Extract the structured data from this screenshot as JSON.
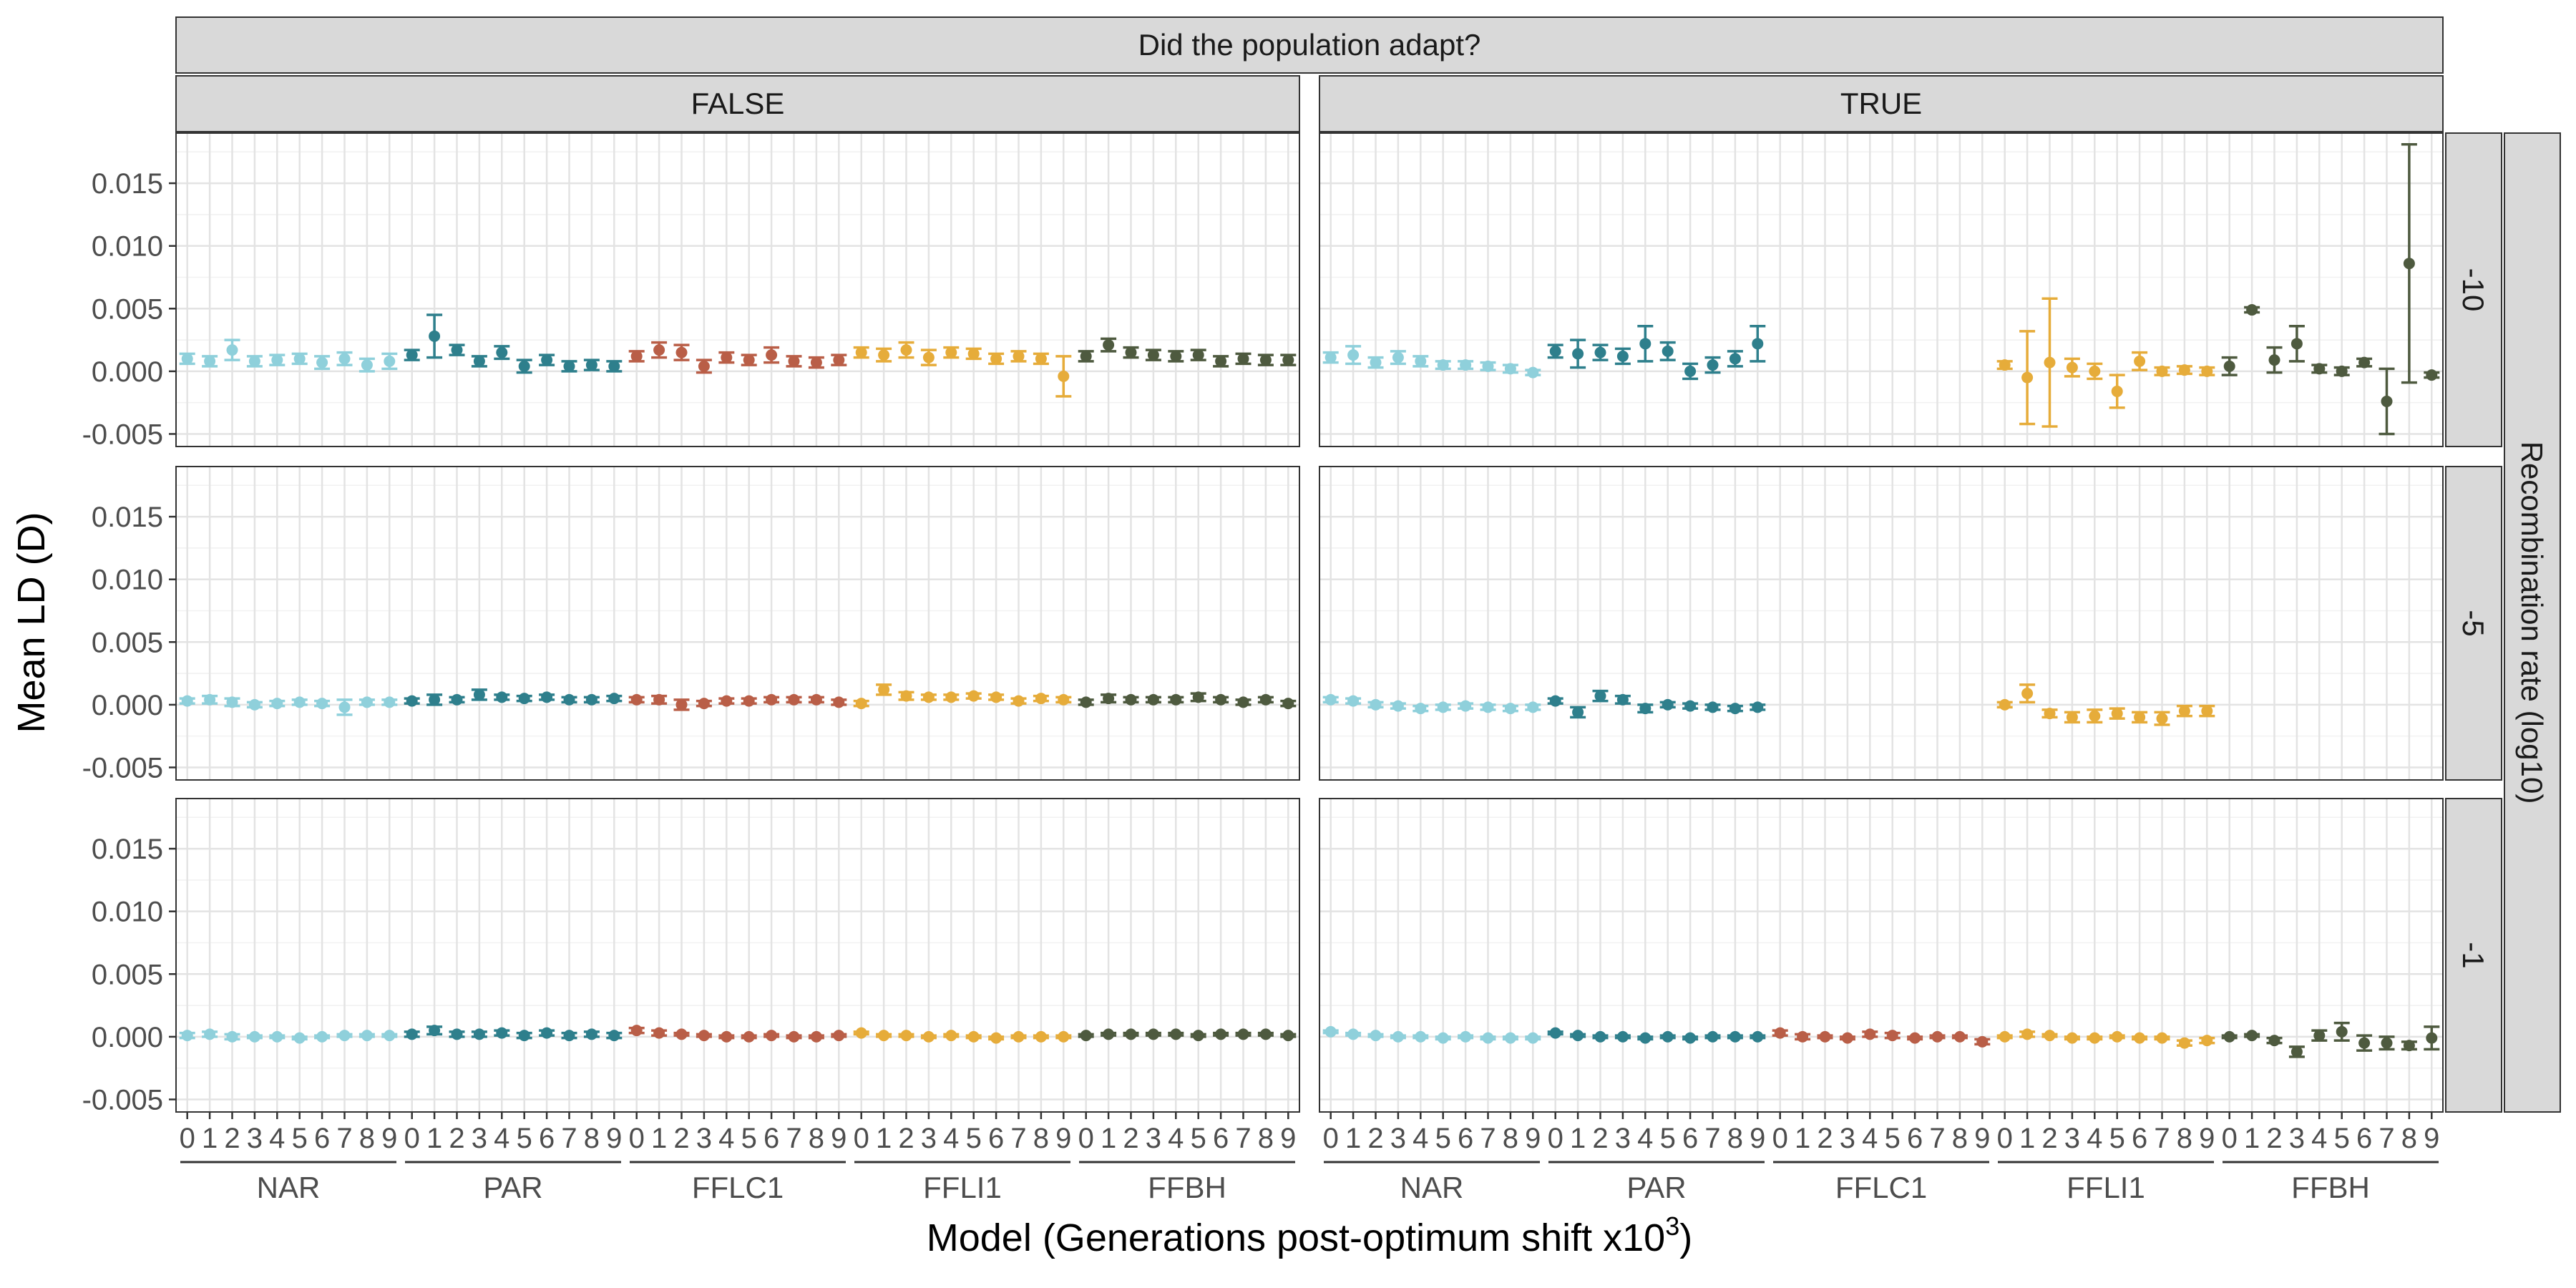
{
  "chart_data": {
    "type": "scatter",
    "facet_top_title": "Did the population adapt?",
    "facet_columns": [
      "FALSE",
      "TRUE"
    ],
    "facet_rows": [
      "-10",
      "-5",
      "-1"
    ],
    "facet_row_title": "Recombination rate (log10)",
    "ylabel": "Mean LD (D)",
    "xlabel": "Model (Generations post-optimum shift x10",
    "xlabel_superscript": "3",
    "xlabel_close": ")",
    "ylim": [
      -0.006,
      0.019
    ],
    "yticks": [
      -0.005,
      0.0,
      0.005,
      0.01,
      0.015
    ],
    "ytick_labels": [
      "-0.005",
      "0.000",
      "0.005",
      "0.010",
      "0.015"
    ],
    "grid": true,
    "models": [
      {
        "name": "NAR",
        "color": "#8fd0db"
      },
      {
        "name": "PAR",
        "color": "#2e7f8c"
      },
      {
        "name": "FFLC1",
        "color": "#b95e47"
      },
      {
        "name": "FFLI1",
        "color": "#e6ac3a"
      },
      {
        "name": "FFBH",
        "color": "#4e5a3f"
      }
    ],
    "generations": [
      "0",
      "1",
      "2",
      "3",
      "4",
      "5",
      "6",
      "7",
      "8",
      "9"
    ],
    "panels": [
      {
        "row": "-10",
        "col": "FALSE",
        "series": [
          {
            "model": "NAR",
            "mean": [
              0.001,
              0.0008,
              0.0017,
              0.0008,
              0.0009,
              0.001,
              0.0007,
              0.001,
              0.0005,
              0.0008
            ],
            "err": [
              0.0004,
              0.0004,
              0.0008,
              0.0004,
              0.0004,
              0.0004,
              0.0005,
              0.0005,
              0.0005,
              0.0006
            ]
          },
          {
            "model": "PAR",
            "mean": [
              0.0013,
              0.0028,
              0.0017,
              0.0008,
              0.0015,
              0.0004,
              0.0009,
              0.0004,
              0.0005,
              0.0004
            ],
            "err": [
              0.0004,
              0.0017,
              0.0004,
              0.0004,
              0.0005,
              0.0005,
              0.0004,
              0.0004,
              0.0004,
              0.0004
            ]
          },
          {
            "model": "FFLC1",
            "mean": [
              0.0012,
              0.0017,
              0.0015,
              0.0004,
              0.0011,
              0.0009,
              0.0013,
              0.0008,
              0.0007,
              0.0009
            ],
            "err": [
              0.0004,
              0.0006,
              0.0006,
              0.0005,
              0.0004,
              0.0004,
              0.0006,
              0.0004,
              0.0004,
              0.0004
            ]
          },
          {
            "model": "FFLI1",
            "mean": [
              0.0015,
              0.0013,
              0.0017,
              0.0011,
              0.0015,
              0.0014,
              0.001,
              0.0012,
              0.001,
              -0.0004
            ],
            "err": [
              0.0004,
              0.0005,
              0.0006,
              0.0006,
              0.0004,
              0.0004,
              0.0004,
              0.0004,
              0.0004,
              0.0016
            ]
          },
          {
            "model": "FFBH",
            "mean": [
              0.0012,
              0.0021,
              0.0015,
              0.0013,
              0.0012,
              0.0013,
              0.0008,
              0.001,
              0.0009,
              0.0009
            ],
            "err": [
              0.0004,
              0.0005,
              0.0004,
              0.0004,
              0.0004,
              0.0004,
              0.0004,
              0.0004,
              0.0004,
              0.0004
            ]
          }
        ]
      },
      {
        "row": "-10",
        "col": "TRUE",
        "series": [
          {
            "model": "NAR",
            "mean": [
              0.0011,
              0.0013,
              0.0007,
              0.0011,
              0.0008,
              0.0005,
              0.0005,
              0.0004,
              0.0002,
              -0.0001
            ],
            "err": [
              0.0004,
              0.0007,
              0.0004,
              0.0005,
              0.0004,
              0.0003,
              0.0003,
              0.0003,
              0.0003,
              0.0002
            ]
          },
          {
            "model": "PAR",
            "mean": [
              0.0016,
              0.0014,
              0.0015,
              0.0012,
              0.0022,
              0.0016,
              0.0,
              0.0005,
              0.001,
              0.0022
            ],
            "err": [
              0.0005,
              0.0011,
              0.0006,
              0.0006,
              0.0014,
              0.0007,
              0.0006,
              0.0006,
              0.0006,
              0.0014
            ]
          },
          {
            "model": "FFLI1",
            "mean": [
              0.0005,
              -0.0005,
              0.0007,
              0.0003,
              0.0,
              -0.0016,
              0.0008,
              0.0,
              0.0001,
              0.0
            ],
            "err": [
              0.0003,
              0.0037,
              0.0051,
              0.0007,
              0.0006,
              0.0013,
              0.0007,
              0.0003,
              0.0003,
              0.0003
            ]
          },
          {
            "model": "FFBH",
            "mean": [
              0.0004,
              0.0049,
              0.0009,
              0.0022,
              0.0002,
              0.0,
              0.0007,
              -0.0024,
              0.0086,
              -0.0003
            ],
            "err": [
              0.0007,
              0.0002,
              0.001,
              0.0014,
              0.0003,
              0.0003,
              0.0003,
              0.0026,
              0.0095,
              0.0002
            ]
          }
        ]
      },
      {
        "row": "-5",
        "col": "FALSE",
        "series": [
          {
            "model": "NAR",
            "mean": [
              0.0003,
              0.0004,
              0.0002,
              0.0,
              0.0001,
              0.0002,
              0.0001,
              -0.0002,
              0.0002,
              0.0002
            ],
            "err": [
              0.0002,
              0.0003,
              0.0003,
              0.0002,
              0.0002,
              0.0002,
              0.0002,
              0.0006,
              0.0002,
              0.0002
            ]
          },
          {
            "model": "PAR",
            "mean": [
              0.0003,
              0.0004,
              0.0004,
              0.0008,
              0.0006,
              0.0005,
              0.0006,
              0.0004,
              0.0004,
              0.0005
            ],
            "err": [
              0.0002,
              0.0004,
              0.0002,
              0.0004,
              0.0002,
              0.0002,
              0.0002,
              0.0002,
              0.0002,
              0.0002
            ]
          },
          {
            "model": "FFLC1",
            "mean": [
              0.0004,
              0.0004,
              0.0,
              0.0001,
              0.0003,
              0.0003,
              0.0004,
              0.0004,
              0.0004,
              0.0002
            ],
            "err": [
              0.0002,
              0.0003,
              0.0004,
              0.0002,
              0.0002,
              0.0002,
              0.0002,
              0.0002,
              0.0002,
              0.0002
            ]
          },
          {
            "model": "FFLI1",
            "mean": [
              0.0001,
              0.0012,
              0.0007,
              0.0006,
              0.0006,
              0.0007,
              0.0006,
              0.0003,
              0.0005,
              0.0004
            ],
            "err": [
              0.0002,
              0.0004,
              0.0003,
              0.0002,
              0.0002,
              0.0002,
              0.0002,
              0.0002,
              0.0002,
              0.0002
            ]
          },
          {
            "model": "FFBH",
            "mean": [
              0.0002,
              0.0005,
              0.0004,
              0.0004,
              0.0004,
              0.0006,
              0.0004,
              0.0002,
              0.0004,
              0.0001
            ],
            "err": [
              0.0002,
              0.0003,
              0.0002,
              0.0002,
              0.0002,
              0.0003,
              0.0002,
              0.0002,
              0.0002,
              0.0002
            ]
          }
        ]
      },
      {
        "row": "-5",
        "col": "TRUE",
        "series": [
          {
            "model": "NAR",
            "mean": [
              0.0004,
              0.0003,
              0.0,
              -0.0001,
              -0.0003,
              -0.0002,
              -0.0001,
              -0.0002,
              -0.0003,
              -0.0002
            ],
            "err": [
              0.0002,
              0.0002,
              0.0002,
              0.0002,
              0.0002,
              0.0002,
              0.0002,
              0.0002,
              0.0002,
              0.0002
            ]
          },
          {
            "model": "PAR",
            "mean": [
              0.0003,
              -0.0006,
              0.0007,
              0.0004,
              -0.0003,
              0.0,
              -0.0001,
              -0.0002,
              -0.0003,
              -0.0002
            ],
            "err": [
              0.0002,
              0.0004,
              0.0004,
              0.0003,
              0.0003,
              0.0002,
              0.0002,
              0.0002,
              0.0002,
              0.0002
            ]
          },
          {
            "model": "FFLI1",
            "mean": [
              0.0,
              0.0009,
              -0.0007,
              -0.001,
              -0.0009,
              -0.0007,
              -0.001,
              -0.0011,
              -0.0005,
              -0.0005
            ],
            "err": [
              0.0002,
              0.0007,
              0.0003,
              0.0004,
              0.0005,
              0.0004,
              0.0004,
              0.0005,
              0.0004,
              0.0004
            ]
          }
        ]
      },
      {
        "row": "-1",
        "col": "FALSE",
        "series": [
          {
            "model": "NAR",
            "mean": [
              0.0001,
              0.0002,
              0.0,
              0.0,
              0.0,
              -0.0001,
              0.0,
              0.0001,
              0.0001,
              0.0001
            ],
            "err": [
              0.0002,
              0.0002,
              0.0002,
              0.0001,
              0.0001,
              0.0001,
              0.0001,
              0.0001,
              0.0001,
              0.0001
            ]
          },
          {
            "model": "PAR",
            "mean": [
              0.0002,
              0.0005,
              0.0002,
              0.0002,
              0.0003,
              0.0001,
              0.0003,
              0.0001,
              0.0002,
              0.0001
            ],
            "err": [
              0.0002,
              0.0003,
              0.0002,
              0.0002,
              0.0002,
              0.0002,
              0.0002,
              0.0002,
              0.0002,
              0.0002
            ]
          },
          {
            "model": "FFLC1",
            "mean": [
              0.0005,
              0.0003,
              0.0002,
              0.0001,
              0.0,
              0.0,
              0.0001,
              0.0,
              0.0,
              0.0001
            ],
            "err": [
              0.0002,
              0.0002,
              0.0001,
              0.0001,
              0.0001,
              0.0001,
              0.0001,
              0.0001,
              0.0001,
              0.0001
            ]
          },
          {
            "model": "FFLI1",
            "mean": [
              0.0003,
              0.0001,
              0.0001,
              0.0,
              0.0001,
              0.0,
              -0.0001,
              0.0,
              0.0,
              0.0
            ],
            "err": [
              0.0001,
              0.0001,
              0.0001,
              0.0001,
              0.0001,
              0.0001,
              0.0001,
              0.0001,
              0.0001,
              0.0001
            ]
          },
          {
            "model": "FFBH",
            "mean": [
              0.0001,
              0.0002,
              0.0002,
              0.0002,
              0.0002,
              0.0001,
              0.0002,
              0.0002,
              0.0002,
              0.0001
            ],
            "err": [
              0.0001,
              0.0001,
              0.0001,
              0.0001,
              0.0001,
              0.0001,
              0.0001,
              0.0001,
              0.0001,
              0.0001
            ]
          }
        ]
      },
      {
        "row": "-1",
        "col": "TRUE",
        "series": [
          {
            "model": "NAR",
            "mean": [
              0.0004,
              0.0002,
              0.0001,
              0.0,
              0.0,
              -0.0001,
              0.0,
              -0.0001,
              -0.0001,
              -0.0001
            ],
            "err": [
              0.0001,
              0.0001,
              0.0001,
              0.0001,
              0.0001,
              0.0001,
              0.0001,
              0.0001,
              0.0001,
              0.0001
            ]
          },
          {
            "model": "PAR",
            "mean": [
              0.0003,
              0.0001,
              0.0,
              0.0,
              -0.0001,
              0.0,
              -0.0001,
              0.0,
              0.0,
              0.0
            ],
            "err": [
              0.0001,
              0.0001,
              0.0001,
              0.0001,
              0.0001,
              0.0001,
              0.0001,
              0.0001,
              0.0001,
              0.0001
            ]
          },
          {
            "model": "FFLC1",
            "mean": [
              0.0003,
              0.0,
              0.0,
              -0.0001,
              0.0002,
              0.0001,
              -0.0001,
              0.0,
              0.0,
              -0.0004
            ],
            "err": [
              0.0002,
              0.0002,
              0.0001,
              0.0001,
              0.0002,
              0.0002,
              0.0001,
              0.0001,
              0.0001,
              0.0002
            ]
          },
          {
            "model": "FFLI1",
            "mean": [
              0.0,
              0.0002,
              0.0001,
              -0.0001,
              -0.0001,
              0.0,
              -0.0001,
              -0.0001,
              -0.0005,
              -0.0003
            ],
            "err": [
              0.0001,
              0.0002,
              0.0001,
              0.0001,
              0.0001,
              0.0001,
              0.0001,
              0.0001,
              0.0002,
              0.0002
            ]
          },
          {
            "model": "FFBH",
            "mean": [
              0.0,
              0.0001,
              -0.0003,
              -0.0012,
              0.0001,
              0.0004,
              -0.0005,
              -0.0005,
              -0.0007,
              -0.0001
            ],
            "err": [
              0.0001,
              0.0001,
              0.0002,
              0.0004,
              0.0004,
              0.0007,
              0.0006,
              0.0005,
              0.0003,
              0.0009
            ]
          }
        ]
      }
    ]
  }
}
